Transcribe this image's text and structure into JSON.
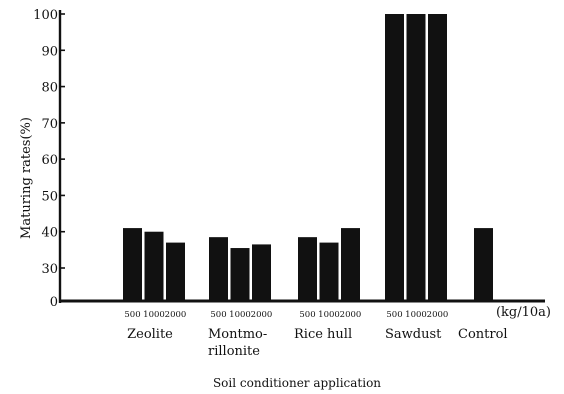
{
  "chart_data": {
    "type": "bar",
    "ylabel": "Maturing rates(%)",
    "xlabel": "Soil conditioner application",
    "x_unit": "(kg/10a)",
    "yticks": [
      "0",
      "30",
      "40",
      "50",
      "60",
      "70",
      "80",
      "90",
      "100"
    ],
    "ylim": [
      0,
      100
    ],
    "y_axis_break": "0-30",
    "grid": false,
    "legend": "none",
    "bar_color": "#111111",
    "groups": [
      {
        "name": "Zeolite",
        "name_lines": [
          "Zeolite"
        ],
        "doses": [
          "500",
          "1000",
          "2000"
        ],
        "values": [
          41,
          40,
          37
        ]
      },
      {
        "name": "Montmorillonite",
        "name_lines": [
          "Montmo-",
          "rillonite"
        ],
        "doses": [
          "500",
          "1000",
          "2000"
        ],
        "values": [
          38.5,
          35.5,
          36.5
        ]
      },
      {
        "name": "Rice hull",
        "name_lines": [
          "Rice hull"
        ],
        "doses": [
          "500",
          "1000",
          "2000"
        ],
        "values": [
          38.5,
          37,
          41
        ]
      },
      {
        "name": "Sawdust",
        "name_lines": [
          "Sawdust"
        ],
        "doses": [
          "500",
          "1000",
          "2000"
        ],
        "values": [
          100,
          100,
          100
        ]
      },
      {
        "name": "Control",
        "name_lines": [
          "Control"
        ],
        "doses": [],
        "values": [
          41
        ]
      }
    ]
  }
}
